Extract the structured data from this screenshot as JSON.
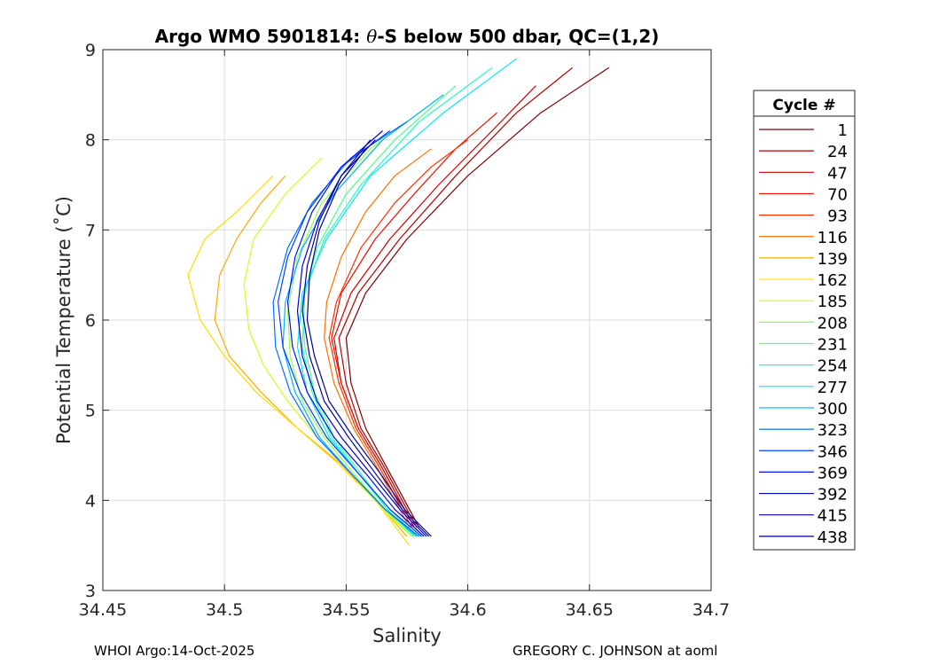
{
  "chart_data": {
    "type": "line",
    "title_prefix": "Argo WMO 5901814: ",
    "title_theta": "θ",
    "title_suffix": "-S below 500 dbar,  QC=(1,2)",
    "xlabel": "Salinity",
    "ylabel": "Potential Temperature (˚C)",
    "xlim": [
      34.45,
      34.7
    ],
    "ylim": [
      3,
      9
    ],
    "xticks": [
      "34.45",
      "34.5",
      "34.55",
      "34.6",
      "34.65",
      "34.7"
    ],
    "xtick_values": [
      34.45,
      34.5,
      34.55,
      34.6,
      34.65,
      34.7
    ],
    "yticks": [
      "3",
      "4",
      "5",
      "6",
      "7",
      "8",
      "9"
    ],
    "ytick_values": [
      3,
      4,
      5,
      6,
      7,
      8,
      9
    ],
    "grid": true,
    "legend_title": "Cycle #",
    "legend_position": "right",
    "legend": [
      {
        "label": "1",
        "color": "#800000"
      },
      {
        "label": "24",
        "color": "#b20000"
      },
      {
        "label": "47",
        "color": "#d00000"
      },
      {
        "label": "70",
        "color": "#ee1000"
      },
      {
        "label": "93",
        "color": "#ff3000"
      },
      {
        "label": "116",
        "color": "#ff7000"
      },
      {
        "label": "139",
        "color": "#ffaa00"
      },
      {
        "label": "162",
        "color": "#ffdd00"
      },
      {
        "label": "185",
        "color": "#ccff20"
      },
      {
        "label": "208",
        "color": "#90ff50"
      },
      {
        "label": "231",
        "color": "#50ff90"
      },
      {
        "label": "254",
        "color": "#20ffc0"
      },
      {
        "label": "277",
        "color": "#00e8ff"
      },
      {
        "label": "300",
        "color": "#00b0ff"
      },
      {
        "label": "323",
        "color": "#0070ff"
      },
      {
        "label": "346",
        "color": "#0040ff"
      },
      {
        "label": "369",
        "color": "#0010ee"
      },
      {
        "label": "392",
        "color": "#0000cc"
      },
      {
        "label": "415",
        "color": "#0000aa"
      },
      {
        "label": "438",
        "color": "#000090"
      }
    ],
    "series": [
      {
        "name": "1",
        "color": "#800000",
        "x": [
          34.658,
          34.63,
          34.6,
          34.575,
          34.558,
          34.55,
          34.552,
          34.558,
          34.566,
          34.574,
          34.58
        ],
        "y": [
          8.8,
          8.3,
          7.6,
          6.9,
          6.3,
          5.8,
          5.3,
          4.8,
          4.4,
          4.0,
          3.7
        ]
      },
      {
        "name": "24",
        "color": "#b20000",
        "x": [
          34.643,
          34.62,
          34.595,
          34.572,
          34.555,
          34.547,
          34.55,
          34.556,
          34.565,
          34.573,
          34.579
        ],
        "y": [
          8.8,
          8.3,
          7.6,
          6.9,
          6.3,
          5.8,
          5.3,
          4.8,
          4.4,
          4.0,
          3.7
        ]
      },
      {
        "name": "47",
        "color": "#d00000",
        "x": [
          34.628,
          34.61,
          34.588,
          34.568,
          34.552,
          34.545,
          34.548,
          34.555,
          34.564,
          34.572,
          34.578
        ],
        "y": [
          8.6,
          8.1,
          7.5,
          6.9,
          6.3,
          5.8,
          5.3,
          4.8,
          4.4,
          4.0,
          3.7
        ]
      },
      {
        "name": "70",
        "color": "#ee1000",
        "x": [
          34.612,
          34.595,
          34.578,
          34.562,
          34.548,
          34.544,
          34.548,
          34.555,
          34.564,
          34.572,
          34.578
        ],
        "y": [
          8.3,
          7.9,
          7.4,
          6.9,
          6.3,
          5.8,
          5.3,
          4.8,
          4.4,
          4.0,
          3.7
        ]
      },
      {
        "name": "93",
        "color": "#ff3000",
        "x": [
          34.6,
          34.585,
          34.57,
          34.556,
          34.546,
          34.543,
          34.547,
          34.554,
          34.563,
          34.571,
          34.577
        ],
        "y": [
          8.0,
          7.7,
          7.3,
          6.8,
          6.2,
          5.8,
          5.3,
          4.8,
          4.4,
          4.0,
          3.7
        ]
      },
      {
        "name": "116",
        "color": "#ff7000",
        "x": [
          34.585,
          34.57,
          34.558,
          34.548,
          34.542,
          34.541,
          34.545,
          34.553,
          34.562,
          34.57,
          34.576
        ],
        "y": [
          7.9,
          7.6,
          7.2,
          6.7,
          6.2,
          5.8,
          5.3,
          4.8,
          4.4,
          4.0,
          3.7
        ]
      },
      {
        "name": "139",
        "color": "#ffaa00",
        "x": [
          34.525,
          34.515,
          34.505,
          34.498,
          34.496,
          34.502,
          34.515,
          34.53,
          34.548,
          34.562,
          34.575
        ],
        "y": [
          7.6,
          7.3,
          6.9,
          6.5,
          6.0,
          5.6,
          5.2,
          4.8,
          4.4,
          4.0,
          3.6
        ]
      },
      {
        "name": "162",
        "color": "#ffdd00",
        "x": [
          34.52,
          34.505,
          34.492,
          34.485,
          34.49,
          34.5,
          34.513,
          34.53,
          34.547,
          34.562,
          34.576
        ],
        "y": [
          7.6,
          7.2,
          6.9,
          6.5,
          6.0,
          5.6,
          5.2,
          4.8,
          4.4,
          4.0,
          3.5
        ]
      },
      {
        "name": "185",
        "color": "#ccff20",
        "x": [
          34.54,
          34.525,
          34.512,
          34.508,
          34.51,
          34.516,
          34.526,
          34.538,
          34.552,
          34.565,
          34.577
        ],
        "y": [
          7.8,
          7.4,
          6.9,
          6.4,
          5.9,
          5.5,
          5.1,
          4.7,
          4.3,
          3.9,
          3.6
        ]
      },
      {
        "name": "208",
        "color": "#90ff50",
        "x": [
          34.59,
          34.56,
          34.54,
          34.53,
          34.526,
          34.527,
          34.532,
          34.541,
          34.553,
          34.566,
          34.577
        ],
        "y": [
          8.5,
          7.9,
          7.3,
          6.7,
          6.1,
          5.6,
          5.1,
          4.7,
          4.3,
          3.9,
          3.6
        ]
      },
      {
        "name": "231",
        "color": "#50ff90",
        "x": [
          34.595,
          34.57,
          34.55,
          34.538,
          34.532,
          34.533,
          34.537,
          34.545,
          34.556,
          34.567,
          34.578
        ],
        "y": [
          8.6,
          8.0,
          7.4,
          6.8,
          6.2,
          5.7,
          5.2,
          4.7,
          4.3,
          3.9,
          3.6
        ]
      },
      {
        "name": "254",
        "color": "#20ffc0",
        "x": [
          34.61,
          34.58,
          34.556,
          34.541,
          34.533,
          34.532,
          34.536,
          34.544,
          34.555,
          34.567,
          34.578
        ],
        "y": [
          8.8,
          8.2,
          7.5,
          6.9,
          6.3,
          5.7,
          5.2,
          4.7,
          4.3,
          3.9,
          3.6
        ]
      },
      {
        "name": "277",
        "color": "#00e8ff",
        "x": [
          34.62,
          34.59,
          34.56,
          34.542,
          34.532,
          34.53,
          34.534,
          34.543,
          34.555,
          34.568,
          34.579
        ],
        "y": [
          8.9,
          8.3,
          7.6,
          6.9,
          6.3,
          5.7,
          5.2,
          4.7,
          4.3,
          3.9,
          3.6
        ]
      },
      {
        "name": "300",
        "color": "#00b0ff",
        "x": [
          34.59,
          34.565,
          34.545,
          34.532,
          34.525,
          34.524,
          34.529,
          34.539,
          34.552,
          34.566,
          34.579
        ],
        "y": [
          8.5,
          8.0,
          7.4,
          6.8,
          6.2,
          5.7,
          5.2,
          4.7,
          4.3,
          3.9,
          3.6
        ]
      },
      {
        "name": "323",
        "color": "#0070ff",
        "x": [
          34.575,
          34.552,
          34.536,
          34.526,
          34.52,
          34.521,
          34.527,
          34.538,
          34.552,
          34.566,
          34.58
        ],
        "y": [
          8.2,
          7.8,
          7.3,
          6.8,
          6.2,
          5.7,
          5.2,
          4.7,
          4.3,
          3.9,
          3.6
        ]
      },
      {
        "name": "346",
        "color": "#0040ff",
        "x": [
          34.568,
          34.548,
          34.534,
          34.526,
          34.522,
          34.524,
          34.531,
          34.542,
          34.555,
          34.568,
          34.581
        ],
        "y": [
          8.1,
          7.7,
          7.2,
          6.7,
          6.2,
          5.7,
          5.2,
          4.7,
          4.3,
          3.9,
          3.6
        ]
      },
      {
        "name": "369",
        "color": "#0010ee",
        "x": [
          34.565,
          34.548,
          34.536,
          34.529,
          34.526,
          34.528,
          34.534,
          34.545,
          34.558,
          34.57,
          34.582
        ],
        "y": [
          8.1,
          7.7,
          7.2,
          6.7,
          6.2,
          5.7,
          5.2,
          4.7,
          4.3,
          3.9,
          3.6
        ]
      },
      {
        "name": "392",
        "color": "#0000cc",
        "x": [
          34.562,
          34.548,
          34.538,
          34.532,
          34.53,
          34.532,
          34.538,
          34.548,
          34.56,
          34.572,
          34.583
        ],
        "y": [
          8.0,
          7.6,
          7.1,
          6.6,
          6.1,
          5.6,
          5.1,
          4.7,
          4.3,
          3.9,
          3.6
        ]
      },
      {
        "name": "415",
        "color": "#0000aa",
        "x": [
          34.56,
          34.548,
          34.539,
          34.534,
          34.532,
          34.535,
          34.541,
          34.551,
          34.562,
          34.573,
          34.584
        ],
        "y": [
          8.0,
          7.6,
          7.1,
          6.6,
          6.1,
          5.6,
          5.1,
          4.7,
          4.3,
          3.9,
          3.6
        ]
      },
      {
        "name": "438",
        "color": "#000090",
        "x": [
          34.558,
          34.547,
          34.539,
          34.535,
          34.534,
          34.537,
          34.543,
          34.553,
          34.564,
          34.574,
          34.585
        ],
        "y": [
          7.9,
          7.5,
          7.0,
          6.5,
          6.0,
          5.6,
          5.1,
          4.7,
          4.3,
          3.9,
          3.6
        ]
      }
    ]
  },
  "footer": {
    "left": "WHOI Argo:14-Oct-2025",
    "right": "GREGORY C. JOHNSON at aoml"
  }
}
